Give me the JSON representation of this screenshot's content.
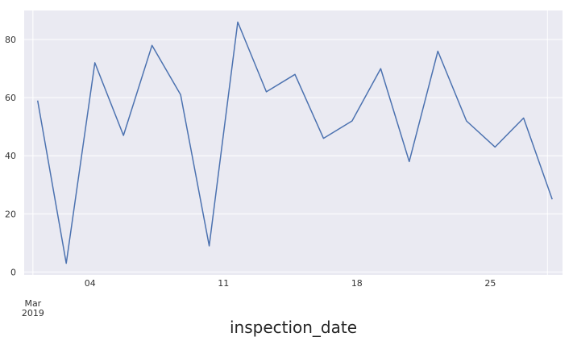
{
  "chart_data": {
    "type": "line",
    "xlabel": "inspection_date",
    "ylabel": "",
    "grid": true,
    "legend": "none",
    "colors": {
      "background": "#eaeaf2",
      "grid": "#ffffff",
      "line": "#4c72b0"
    },
    "xlim": [
      "2019-02-28T13:00",
      "2019-03-28T19:00"
    ],
    "ylim": [
      -1,
      90
    ],
    "x_ticks": [
      {
        "date": "2019-03-01",
        "label": "Mar",
        "label2": "2019",
        "gridline": true,
        "offset_label": true
      },
      {
        "date": "2019-03-04",
        "label": "04",
        "gridline": false
      },
      {
        "date": "2019-03-11",
        "label": "11",
        "gridline": false
      },
      {
        "date": "2019-03-18",
        "label": "18",
        "gridline": false
      },
      {
        "date": "2019-03-25",
        "label": "25",
        "gridline": false
      },
      {
        "date": "2019-03-28",
        "label": "",
        "gridline": true
      }
    ],
    "y_ticks": [
      0,
      20,
      40,
      60,
      80
    ],
    "series": [
      {
        "x": [
          "2019-03-01T06:00",
          "2019-03-02T18:00",
          "2019-03-04T06:00",
          "2019-03-05T18:00",
          "2019-03-07T06:00",
          "2019-03-08T18:00",
          "2019-03-10T06:00",
          "2019-03-11T18:00",
          "2019-03-13T06:00",
          "2019-03-14T18:00",
          "2019-03-16T06:00",
          "2019-03-17T18:00",
          "2019-03-19T06:00",
          "2019-03-20T18:00",
          "2019-03-22T06:00",
          "2019-03-23T18:00",
          "2019-03-25T06:00",
          "2019-03-26T18:00",
          "2019-03-28T06:00"
        ],
        "values": [
          59,
          3,
          72,
          47,
          78,
          61,
          9,
          86,
          62,
          68,
          46,
          52,
          70,
          38,
          76,
          52,
          43,
          53,
          25
        ]
      }
    ]
  }
}
